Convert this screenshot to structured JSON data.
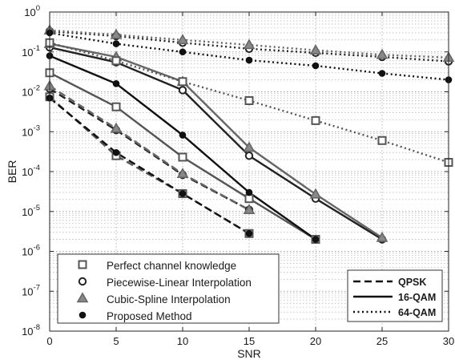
{
  "chart_data": {
    "type": "line",
    "xlabel": "SNR",
    "ylabel": "BER",
    "xlim": [
      0,
      30
    ],
    "ylim": [
      1e-08,
      1
    ],
    "yscale": "log",
    "grid": "dotted, major and minor",
    "x_ticks": [
      0,
      5,
      10,
      15,
      20,
      25,
      30
    ],
    "x_tick_labels": [
      "0",
      "5",
      "10",
      "15",
      "20",
      "25",
      "30"
    ],
    "y_ticks": [
      -8,
      -7,
      -6,
      -5,
      -4,
      -3,
      -2,
      -1,
      0
    ],
    "methods": [
      {
        "name": "Perfect channel knowledge",
        "marker": "square",
        "marker_fill": "white",
        "color": "#555555"
      },
      {
        "name": "Piecewise-Linear Interpolation",
        "marker": "circle",
        "marker_fill": "white",
        "color": "#222222"
      },
      {
        "name": "Cubic-Spline Interpolation",
        "marker": "triangle",
        "marker_fill": "#888888",
        "color": "#666666"
      },
      {
        "name": "Proposed Method",
        "marker": "dot",
        "marker_fill": "#111111",
        "color": "#111111"
      }
    ],
    "modulations": [
      {
        "name": "QPSK",
        "dash": "dashed"
      },
      {
        "name": "16-QAM",
        "dash": "solid"
      },
      {
        "name": "64-QAM",
        "dash": "dotted"
      }
    ],
    "series": [
      {
        "method": "Perfect channel knowledge",
        "modulation": "QPSK",
        "x": [
          0,
          5,
          10,
          15
        ],
        "y": [
          0.0075,
          0.00025,
          2.8e-05,
          2.8e-06
        ]
      },
      {
        "method": "Piecewise-Linear Interpolation",
        "modulation": "QPSK",
        "x": [
          0,
          5,
          10,
          15
        ],
        "y": [
          0.012,
          0.0011,
          8.3e-05,
          1.1e-05
        ]
      },
      {
        "method": "Cubic-Spline Interpolation",
        "modulation": "QPSK",
        "x": [
          0,
          5,
          10,
          15
        ],
        "y": [
          0.014,
          0.0012,
          8.8e-05,
          1.1e-05
        ]
      },
      {
        "method": "Proposed Method",
        "modulation": "QPSK",
        "x": [
          0,
          5,
          10,
          15
        ],
        "y": [
          0.007,
          0.0003,
          2.8e-05,
          2.8e-06
        ]
      },
      {
        "method": "Perfect channel knowledge",
        "modulation": "16-QAM",
        "x": [
          0,
          5,
          10,
          15,
          20
        ],
        "y": [
          0.03,
          0.0042,
          0.00023,
          2.1e-05,
          2e-06
        ]
      },
      {
        "method": "Piecewise-Linear Interpolation",
        "modulation": "16-QAM",
        "x": [
          0,
          5,
          10,
          15,
          20,
          25
        ],
        "y": [
          0.13,
          0.055,
          0.011,
          0.00025,
          2.1e-05,
          2e-06
        ]
      },
      {
        "method": "Cubic-Spline Interpolation",
        "modulation": "16-QAM",
        "x": [
          0,
          5,
          10,
          15,
          20,
          25
        ],
        "y": [
          0.16,
          0.075,
          0.018,
          0.0004,
          2.7e-05,
          2.2e-06
        ]
      },
      {
        "method": "Proposed Method",
        "modulation": "16-QAM",
        "x": [
          0,
          5,
          10,
          15,
          20
        ],
        "y": [
          0.08,
          0.016,
          0.00082,
          3e-05,
          2e-06
        ]
      },
      {
        "method": "Perfect channel knowledge",
        "modulation": "64-QAM",
        "x": [
          0,
          5,
          10,
          15,
          20,
          25,
          30
        ],
        "y": [
          0.17,
          0.06,
          0.018,
          0.006,
          0.0019,
          0.0006,
          0.00017
        ]
      },
      {
        "method": "Piecewise-Linear Interpolation",
        "modulation": "64-QAM",
        "x": [
          0,
          5,
          10,
          15,
          20,
          25,
          30
        ],
        "y": [
          0.33,
          0.25,
          0.17,
          0.12,
          0.095,
          0.075,
          0.058
        ]
      },
      {
        "method": "Cubic-Spline Interpolation",
        "modulation": "64-QAM",
        "x": [
          0,
          5,
          10,
          15,
          20,
          25,
          30
        ],
        "y": [
          0.35,
          0.27,
          0.2,
          0.15,
          0.11,
          0.085,
          0.072
        ]
      },
      {
        "method": "Proposed Method",
        "modulation": "64-QAM",
        "x": [
          0,
          5,
          10,
          15,
          20,
          25,
          30
        ],
        "y": [
          0.3,
          0.16,
          0.1,
          0.062,
          0.045,
          0.029,
          0.02
        ]
      }
    ],
    "legend": {
      "methods_placement": "bottom-left",
      "modulations_placement": "bottom-right"
    }
  }
}
